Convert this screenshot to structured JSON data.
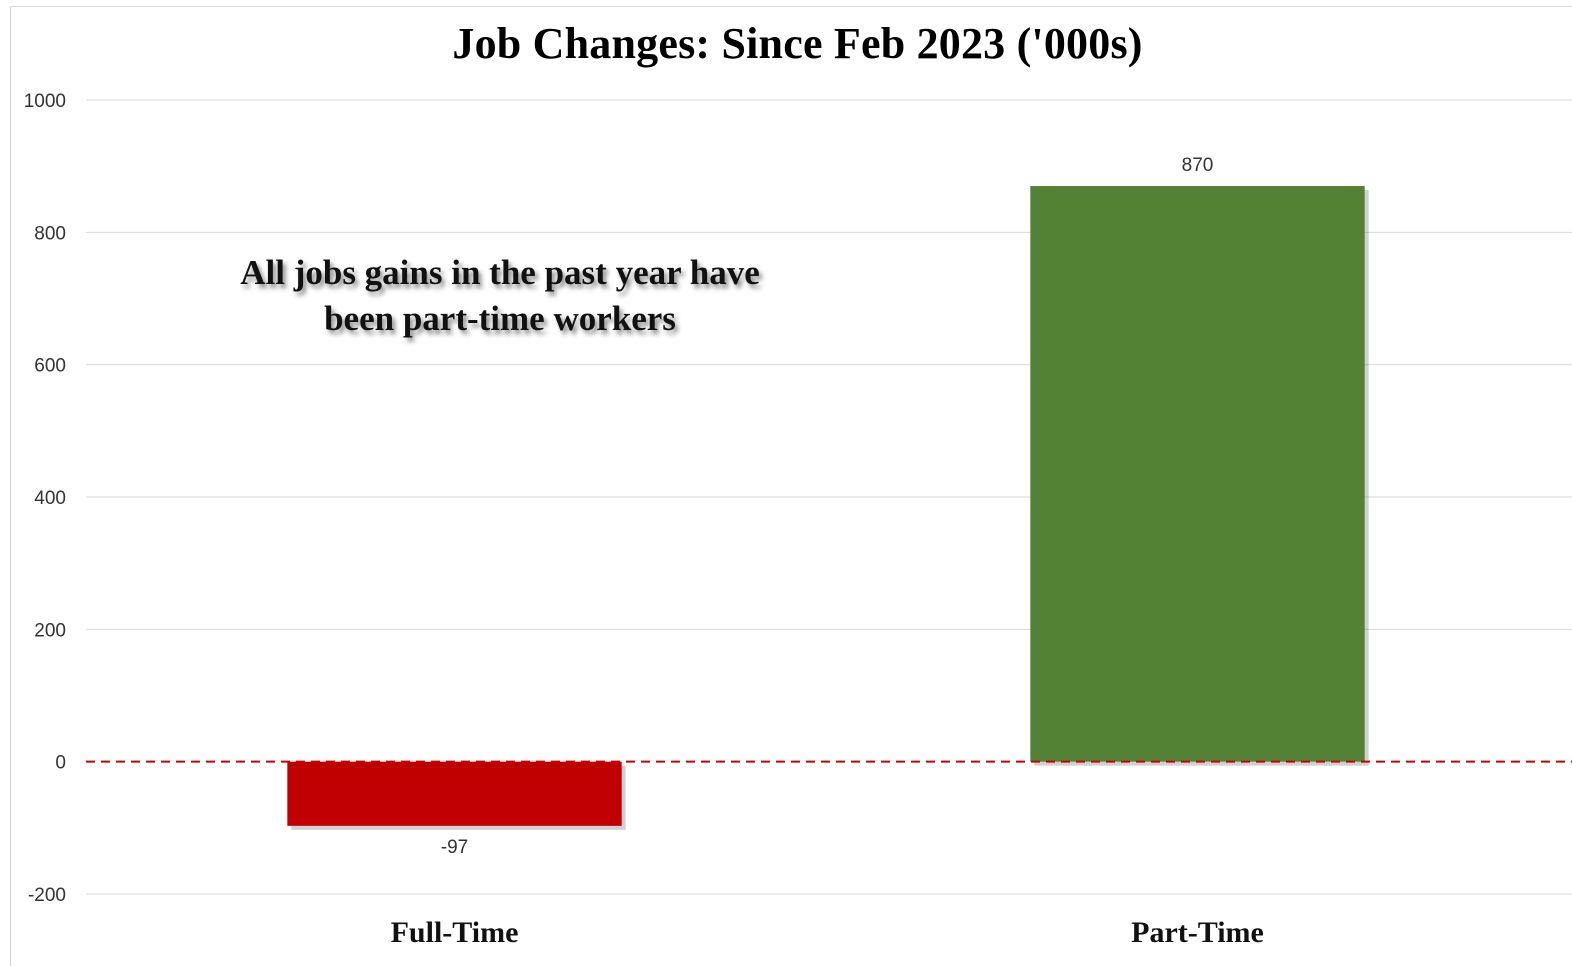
{
  "chart_data": {
    "type": "bar",
    "title": "Job Changes: Since Feb 2023 ('000s)",
    "annotation": [
      "All jobs gains in the past year have",
      "been part-time workers"
    ],
    "categories": [
      "Full-Time",
      "Part-Time"
    ],
    "values": [
      -97,
      870
    ],
    "data_labels": [
      "-97",
      "870"
    ],
    "bar_colors": [
      "#c00000",
      "#548235"
    ],
    "ylim": [
      -200,
      1000
    ],
    "yticks": [
      -200,
      0,
      200,
      400,
      600,
      800,
      1000
    ],
    "ytick_labels": [
      "-200",
      "0",
      "200",
      "400",
      "600",
      "800",
      "1000"
    ],
    "grid": true,
    "zero_line": {
      "style": "dashed",
      "color": "#cc0000"
    },
    "xlabel": "",
    "ylabel": ""
  }
}
